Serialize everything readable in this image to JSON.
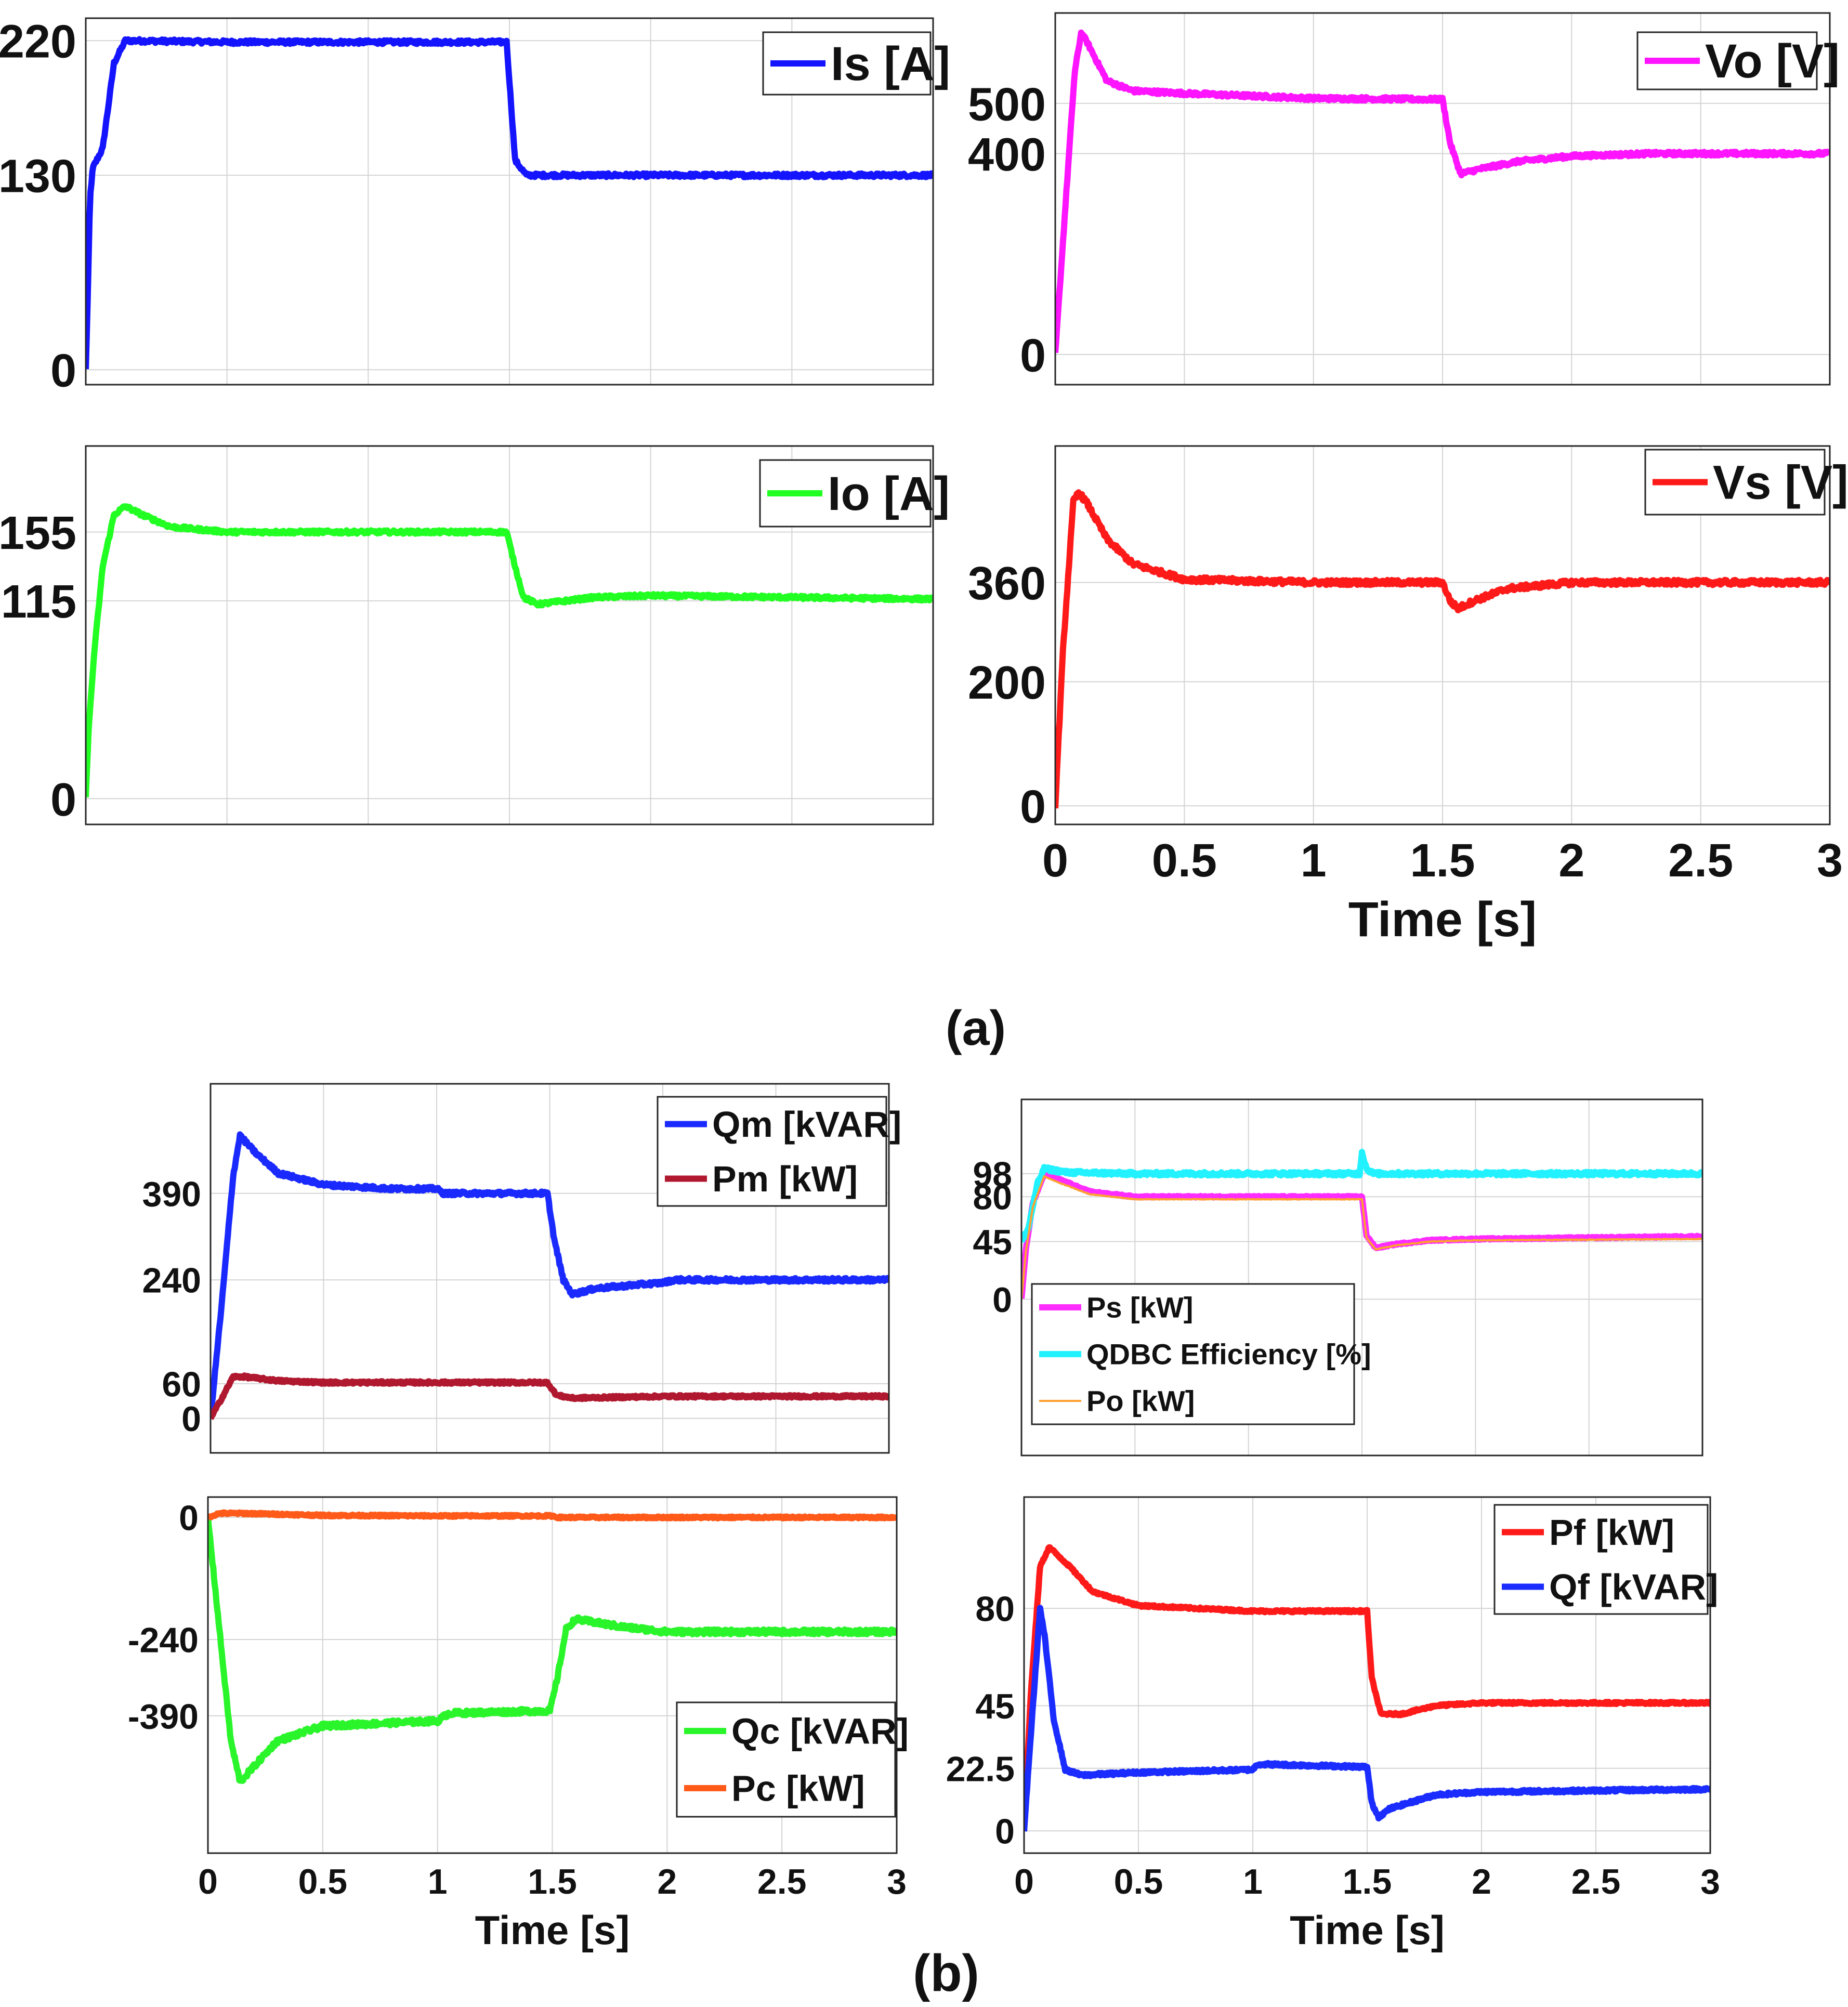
{
  "figure": {
    "caption_a": "(a)",
    "caption_b": "(b)"
  },
  "chart_data": [
    {
      "id": "a1",
      "type": "line",
      "xlim": [
        0,
        3
      ],
      "ylim": [
        -10,
        235
      ],
      "yticks": [
        0,
        130,
        220
      ],
      "xticks": [],
      "xlabel": "",
      "series": [
        {
          "name": "Is [A]",
          "color": "#1414ff",
          "noise": 1.5,
          "points": [
            [
              0,
              0
            ],
            [
              0.008,
              55
            ],
            [
              0.015,
              115
            ],
            [
              0.025,
              135
            ],
            [
              0.06,
              148
            ],
            [
              0.1,
              205
            ],
            [
              0.14,
              220
            ],
            [
              0.5,
              219
            ],
            [
              1.0,
              219
            ],
            [
              1.49,
              219
            ],
            [
              1.505,
              180
            ],
            [
              1.52,
              140
            ],
            [
              1.56,
              130
            ],
            [
              2.0,
              130
            ],
            [
              3,
              130
            ]
          ]
        }
      ]
    },
    {
      "id": "a2",
      "type": "line",
      "xlim": [
        0,
        3
      ],
      "ylim": [
        -60,
        680
      ],
      "yticks": [
        0,
        400,
        500
      ],
      "xticks": [],
      "xlabel": "",
      "series": [
        {
          "name": "Vo [V]",
          "color": "#ff14ff",
          "noise": 1.5,
          "points": [
            [
              0,
              0
            ],
            [
              0.04,
              300
            ],
            [
              0.075,
              560
            ],
            [
              0.1,
              640
            ],
            [
              0.12,
              625
            ],
            [
              0.2,
              545
            ],
            [
              0.3,
              525
            ],
            [
              0.5,
              520
            ],
            [
              1.0,
              510
            ],
            [
              1.5,
              508
            ],
            [
              1.53,
              420
            ],
            [
              1.57,
              360
            ],
            [
              1.65,
              370
            ],
            [
              1.8,
              385
            ],
            [
              2.0,
              395
            ],
            [
              2.3,
              400
            ],
            [
              3,
              400
            ]
          ]
        }
      ]
    },
    {
      "id": "a3",
      "type": "line",
      "xlim": [
        0,
        3
      ],
      "ylim": [
        -15,
        205
      ],
      "yticks": [
        0,
        115,
        155
      ],
      "xticks": [],
      "xlabel": "",
      "series": [
        {
          "name": "Io [A]",
          "color": "#22ff22",
          "noise": 1.3,
          "points": [
            [
              0,
              0
            ],
            [
              0.01,
              40
            ],
            [
              0.03,
              85
            ],
            [
              0.06,
              135
            ],
            [
              0.1,
              165
            ],
            [
              0.14,
              170
            ],
            [
              0.2,
              165
            ],
            [
              0.3,
              158
            ],
            [
              0.5,
              155
            ],
            [
              1.0,
              155
            ],
            [
              1.49,
              155
            ],
            [
              1.52,
              135
            ],
            [
              1.55,
              117
            ],
            [
              1.6,
              113
            ],
            [
              1.8,
              117
            ],
            [
              2.0,
              118
            ],
            [
              3,
              116
            ]
          ]
        }
      ]
    },
    {
      "id": "a4",
      "type": "line",
      "xlim": [
        0,
        3
      ],
      "ylim": [
        -30,
        580
      ],
      "yticks": [
        0,
        200,
        360
      ],
      "xticks": [
        0,
        0.5,
        1,
        1.5,
        2,
        2.5,
        3
      ],
      "xlabel": "Time [s]",
      "series": [
        {
          "name": "Vs [V]",
          "color": "#ff1a1a",
          "noise": 2,
          "points": [
            [
              0,
              0
            ],
            [
              0.03,
              250
            ],
            [
              0.07,
              490
            ],
            [
              0.09,
              505
            ],
            [
              0.12,
              490
            ],
            [
              0.2,
              430
            ],
            [
              0.3,
              390
            ],
            [
              0.5,
              365
            ],
            [
              1.0,
              360
            ],
            [
              1.5,
              360
            ],
            [
              1.53,
              330
            ],
            [
              1.56,
              318
            ],
            [
              1.62,
              330
            ],
            [
              1.75,
              350
            ],
            [
              2.0,
              360
            ],
            [
              3,
              360
            ]
          ]
        }
      ]
    },
    {
      "id": "b1",
      "type": "line",
      "xlim": [
        0,
        3
      ],
      "ylim": [
        -60,
        580
      ],
      "yticks": [
        0,
        60,
        240,
        390
      ],
      "xticks": [],
      "xlabel": "",
      "series": [
        {
          "name": "Qm [kVAR]",
          "color": "#1a2aff",
          "noise": 1.5,
          "points": [
            [
              0,
              0
            ],
            [
              0.05,
              200
            ],
            [
              0.1,
              420
            ],
            [
              0.13,
              490
            ],
            [
              0.2,
              460
            ],
            [
              0.3,
              425
            ],
            [
              0.5,
              405
            ],
            [
              0.8,
              398
            ],
            [
              1.0,
              398
            ],
            [
              1.03,
              390
            ],
            [
              1.49,
              390
            ],
            [
              1.52,
              310
            ],
            [
              1.56,
              240
            ],
            [
              1.6,
              215
            ],
            [
              1.7,
              225
            ],
            [
              1.9,
              232
            ],
            [
              2.0,
              235
            ],
            [
              2.05,
              240
            ],
            [
              3,
              240
            ]
          ]
        },
        {
          "name": "Pm [kW]",
          "color": "#b0182f",
          "noise": 1,
          "points": [
            [
              0,
              0
            ],
            [
              0.05,
              35
            ],
            [
              0.1,
              72
            ],
            [
              0.15,
              72
            ],
            [
              0.3,
              65
            ],
            [
              0.5,
              62
            ],
            [
              1.0,
              62
            ],
            [
              1.49,
              62
            ],
            [
              1.53,
              40
            ],
            [
              1.6,
              35
            ],
            [
              2.0,
              38
            ],
            [
              3,
              38
            ]
          ]
        }
      ]
    },
    {
      "id": "b2",
      "type": "line",
      "xlim": [
        0,
        3
      ],
      "ylim": [
        -122,
        156
      ],
      "yticks": [
        0,
        45,
        80,
        98
      ],
      "xticks": [],
      "xlabel": "",
      "series": [
        {
          "name": "Ps [kW]",
          "color": "#ff2cff",
          "noise": 0.6,
          "points": [
            [
              0,
              0
            ],
            [
              0.02,
              40
            ],
            [
              0.05,
              75
            ],
            [
              0.1,
              98
            ],
            [
              0.15,
              95
            ],
            [
              0.3,
              84
            ],
            [
              0.5,
              80
            ],
            [
              1.0,
              80
            ],
            [
              1.5,
              80
            ],
            [
              1.52,
              50
            ],
            [
              1.56,
              40
            ],
            [
              1.65,
              43
            ],
            [
              1.8,
              46
            ],
            [
              2.0,
              47
            ],
            [
              3,
              49
            ]
          ]
        },
        {
          "name": "QDBC Efficiency [%]",
          "color": "#22f2ff",
          "noise": 1.5,
          "points": [
            [
              0,
              45
            ],
            [
              0.03,
              55
            ],
            [
              0.07,
              90
            ],
            [
              0.1,
              102
            ],
            [
              0.2,
              99
            ],
            [
              0.5,
              98
            ],
            [
              1.0,
              98
            ],
            [
              1.49,
              98
            ],
            [
              1.5,
              115
            ],
            [
              1.52,
              102
            ],
            [
              1.55,
              98
            ],
            [
              3,
              98
            ]
          ]
        },
        {
          "name": "Po [kW]",
          "color": "#ffa030",
          "noise": 0.3,
          "points": [
            [
              0,
              0
            ],
            [
              0.02,
              38
            ],
            [
              0.05,
              72
            ],
            [
              0.1,
              96
            ],
            [
              0.15,
              92
            ],
            [
              0.3,
              82
            ],
            [
              0.5,
              78
            ],
            [
              1.0,
              78
            ],
            [
              1.5,
              78
            ],
            [
              1.52,
              48
            ],
            [
              1.56,
              39
            ],
            [
              1.65,
              42
            ],
            [
              1.8,
              45
            ],
            [
              2.0,
              46
            ],
            [
              3,
              47
            ]
          ]
        }
      ]
    },
    {
      "id": "b3",
      "type": "line",
      "xlim": [
        0,
        3
      ],
      "ylim": [
        -660,
        40
      ],
      "yticks": [
        -390,
        -240,
        0
      ],
      "xticks": [
        0,
        0.5,
        1,
        1.5,
        2,
        2.5,
        3
      ],
      "xlabel": "Time [s]",
      "series": [
        {
          "name": "Qc [kVAR]",
          "color": "#2af52a",
          "noise": 2,
          "points": [
            [
              0,
              0
            ],
            [
              0.05,
              -220
            ],
            [
              0.1,
              -440
            ],
            [
              0.14,
              -520
            ],
            [
              0.2,
              -490
            ],
            [
              0.3,
              -440
            ],
            [
              0.5,
              -410
            ],
            [
              1.0,
              -400
            ],
            [
              1.05,
              -385
            ],
            [
              1.49,
              -380
            ],
            [
              1.52,
              -320
            ],
            [
              1.56,
              -220
            ],
            [
              1.6,
              -200
            ],
            [
              1.8,
              -215
            ],
            [
              2.0,
              -225
            ],
            [
              3,
              -225
            ]
          ]
        },
        {
          "name": "Pc [kW]",
          "color": "#ff5a1a",
          "noise": 0.8,
          "points": [
            [
              0,
              0
            ],
            [
              0.05,
              8
            ],
            [
              0.15,
              8
            ],
            [
              0.5,
              4
            ],
            [
              1.0,
              3
            ],
            [
              1.5,
              3
            ],
            [
              1.52,
              0
            ],
            [
              3,
              0
            ]
          ]
        }
      ]
    },
    {
      "id": "b4",
      "type": "line",
      "xlim": [
        0,
        3
      ],
      "ylim": [
        -8,
        120
      ],
      "yticks": [
        0,
        22.5,
        45,
        80
      ],
      "xticks": [
        0,
        0.5,
        1,
        1.5,
        2,
        2.5,
        3
      ],
      "xlabel": "Time [s]",
      "series": [
        {
          "name": "Pf [kW]",
          "color": "#ff1a1a",
          "noise": 0.9,
          "points": [
            [
              0,
              0
            ],
            [
              0.03,
              50
            ],
            [
              0.07,
              95
            ],
            [
              0.11,
              102
            ],
            [
              0.2,
              95
            ],
            [
              0.3,
              86
            ],
            [
              0.5,
              81
            ],
            [
              1.0,
              79
            ],
            [
              1.5,
              79
            ],
            [
              1.52,
              55
            ],
            [
              1.56,
              42
            ],
            [
              1.65,
              42
            ],
            [
              1.8,
              45
            ],
            [
              2.0,
              46
            ],
            [
              3,
              46
            ]
          ]
        },
        {
          "name": "Qf [kVAR]",
          "color": "#1a2cff",
          "noise": 1.2,
          "points": [
            [
              0,
              0
            ],
            [
              0.03,
              35
            ],
            [
              0.07,
              80
            ],
            [
              0.09,
              70
            ],
            [
              0.13,
              40
            ],
            [
              0.18,
              22
            ],
            [
              0.25,
              20
            ],
            [
              0.5,
              21
            ],
            [
              1.0,
              22
            ],
            [
              1.02,
              24
            ],
            [
              1.5,
              23
            ],
            [
              1.52,
              10
            ],
            [
              1.55,
              5
            ],
            [
              1.6,
              8
            ],
            [
              1.8,
              13
            ],
            [
              2.0,
              14
            ],
            [
              3,
              15
            ]
          ]
        }
      ]
    }
  ]
}
